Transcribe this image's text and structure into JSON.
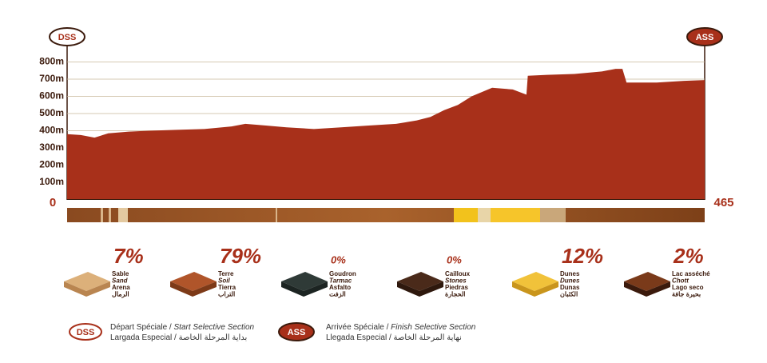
{
  "chart_data": {
    "type": "area",
    "x": [
      0,
      10,
      20,
      30,
      45,
      60,
      80,
      100,
      120,
      130,
      145,
      160,
      180,
      200,
      220,
      240,
      255,
      265,
      275,
      285,
      295,
      310,
      325,
      335,
      336,
      350,
      370,
      390,
      400,
      405,
      408,
      430,
      450,
      465
    ],
    "series": [
      {
        "color": "#a8301a",
        "values": [
          380,
          375,
          360,
          385,
          395,
          400,
          405,
          410,
          425,
          440,
          430,
          420,
          410,
          420,
          430,
          440,
          460,
          480,
          520,
          550,
          600,
          650,
          640,
          610,
          720,
          725,
          730,
          745,
          760,
          760,
          680,
          680,
          690,
          695
        ]
      }
    ],
    "xlim": [
      0,
      465
    ],
    "xticks": [
      0,
      465
    ],
    "ylim": [
      0,
      800
    ],
    "yticks": [
      {
        "value": 100,
        "label": "100m"
      },
      {
        "value": 200,
        "label": "200m"
      },
      {
        "value": 300,
        "label": "300m"
      },
      {
        "value": 400,
        "label": "400m"
      },
      {
        "value": 500,
        "label": "500m"
      },
      {
        "value": 600,
        "label": "600m"
      },
      {
        "value": 700,
        "label": "700m"
      },
      {
        "value": 800,
        "label": "800m"
      }
    ],
    "grid": true
  },
  "markers": {
    "start": "DSS",
    "end": "ASS"
  },
  "surfaces": [
    {
      "percent": "7%",
      "names": [
        "Sable",
        "Sand",
        "Arena",
        "الرمال"
      ]
    },
    {
      "percent": "79%",
      "names": [
        "Terre",
        "Soil",
        "Tierra",
        "التراب"
      ]
    },
    {
      "percent": "0%",
      "names": [
        "Goudron",
        "Tarmac",
        "Asfalto",
        "الزفت"
      ]
    },
    {
      "percent": "0%",
      "names": [
        "Cailloux",
        "Stones",
        "Piedras",
        "الحجارة"
      ]
    },
    {
      "percent": "12%",
      "names": [
        "Dunes",
        "Dunes",
        "Dunas",
        "الكثبان"
      ]
    },
    {
      "percent": "2%",
      "names": [
        "Lac asséché",
        "Chott",
        "Lago seco",
        "بحيرة جافة"
      ]
    }
  ],
  "legend": [
    {
      "badge": "DSS",
      "fr": "Départ Spéciale / ",
      "en": "Start Selective Section",
      "pt": "Largada Especial / ",
      "ar": "بداية المرحلة الخاصة"
    },
    {
      "badge": "ASS",
      "fr": "Arrivée Spéciale / ",
      "en": "Finish Selective Section",
      "pt": "Llegada Especial / ",
      "ar": "نهاية المرحلة الخاصة"
    }
  ]
}
